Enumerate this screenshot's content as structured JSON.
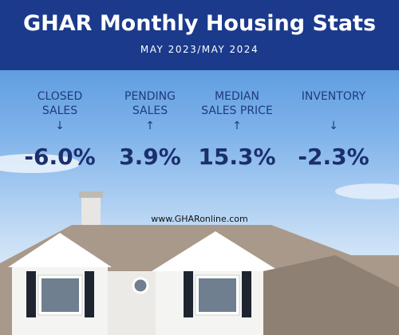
{
  "header": {
    "title": "GHAR Monthly Housing Stats",
    "subtitle": "MAY 2023/MAY 2024"
  },
  "stats": [
    {
      "label_lines": [
        "CLOSED",
        "SALES"
      ],
      "arrow": "↓",
      "value": "-6.0%"
    },
    {
      "label_lines": [
        "PENDING",
        "SALES"
      ],
      "arrow": "↑",
      "value": "3.9%"
    },
    {
      "label_lines": [
        "MEDIAN",
        "SALES PRICE"
      ],
      "arrow": "↑",
      "value": "15.3%"
    },
    {
      "label_lines": [
        "INVENTORY"
      ],
      "arrow": "↓",
      "value": "-2.3%"
    }
  ],
  "website": "www.GHARonline.com"
}
